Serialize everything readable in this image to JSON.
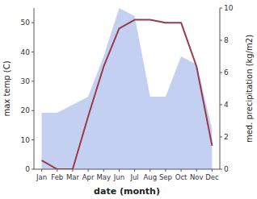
{
  "chart_data": {
    "type": "line",
    "categories": [
      "Jan",
      "Feb",
      "Mar",
      "Apr",
      "May",
      "Jun",
      "Jul",
      "Aug",
      "Sep",
      "Oct",
      "Nov",
      "Dec"
    ],
    "series": [
      {
        "type": "area",
        "axis": "y2",
        "color": "#b8c8ee",
        "values": [
          3.5,
          3.5,
          4.0,
          4.5,
          7.0,
          10.0,
          9.5,
          4.5,
          4.5,
          7.0,
          6.5,
          2.5
        ]
      },
      {
        "type": "line",
        "color": "#9b3a4a",
        "values": [
          3,
          0,
          0,
          18,
          35,
          48,
          51,
          51,
          50,
          50,
          35,
          8
        ]
      }
    ],
    "xlabel": "date (month)",
    "ylabel": "max temp (C)",
    "y2label": "med. precipitation (kg/m2)",
    "ylim": [
      0,
      55
    ],
    "yticks": [
      0,
      10,
      20,
      30,
      40,
      50
    ],
    "y2lim": [
      0,
      10
    ],
    "y2ticks": [
      0,
      2,
      4,
      6,
      8,
      10
    ],
    "grid": false
  }
}
